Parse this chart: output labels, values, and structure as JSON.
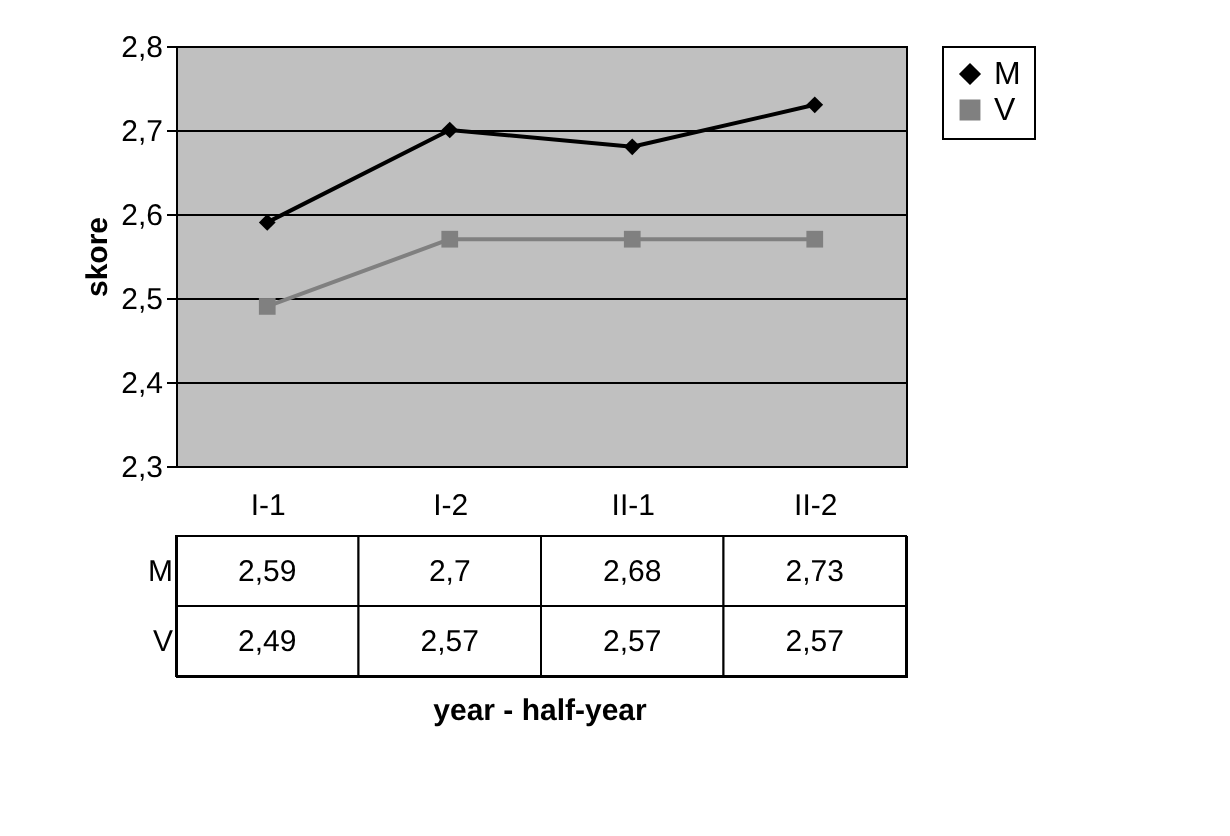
{
  "chart_data": {
    "type": "line",
    "annotations": [
      "year - half-year"
    ],
    "ylabel": "skore",
    "categories": [
      "I-1",
      "I-2",
      "II-1",
      "II-2"
    ],
    "series": [
      {
        "name": "M",
        "color": "#000000",
        "marker": "diamond",
        "values": [
          2.59,
          2.7,
          2.68,
          2.73
        ],
        "value_labels": [
          "2,59",
          "2,7",
          "2,68",
          "2,73"
        ]
      },
      {
        "name": "V",
        "color": "#808080",
        "marker": "square",
        "values": [
          2.49,
          2.57,
          2.57,
          2.57
        ],
        "value_labels": [
          "2,49",
          "2,57",
          "2,57",
          "2,57"
        ]
      }
    ],
    "ylim": [
      2.3,
      2.8
    ],
    "yticks": [
      {
        "value": 2.3,
        "label": "2,3"
      },
      {
        "value": 2.4,
        "label": "2,4"
      },
      {
        "value": 2.5,
        "label": "2,5"
      },
      {
        "value": 2.6,
        "label": "2,6"
      },
      {
        "value": 2.7,
        "label": "2,7"
      },
      {
        "value": 2.8,
        "label": "2,8"
      }
    ],
    "grid": "y",
    "legend": "right",
    "line_style": "solid"
  }
}
